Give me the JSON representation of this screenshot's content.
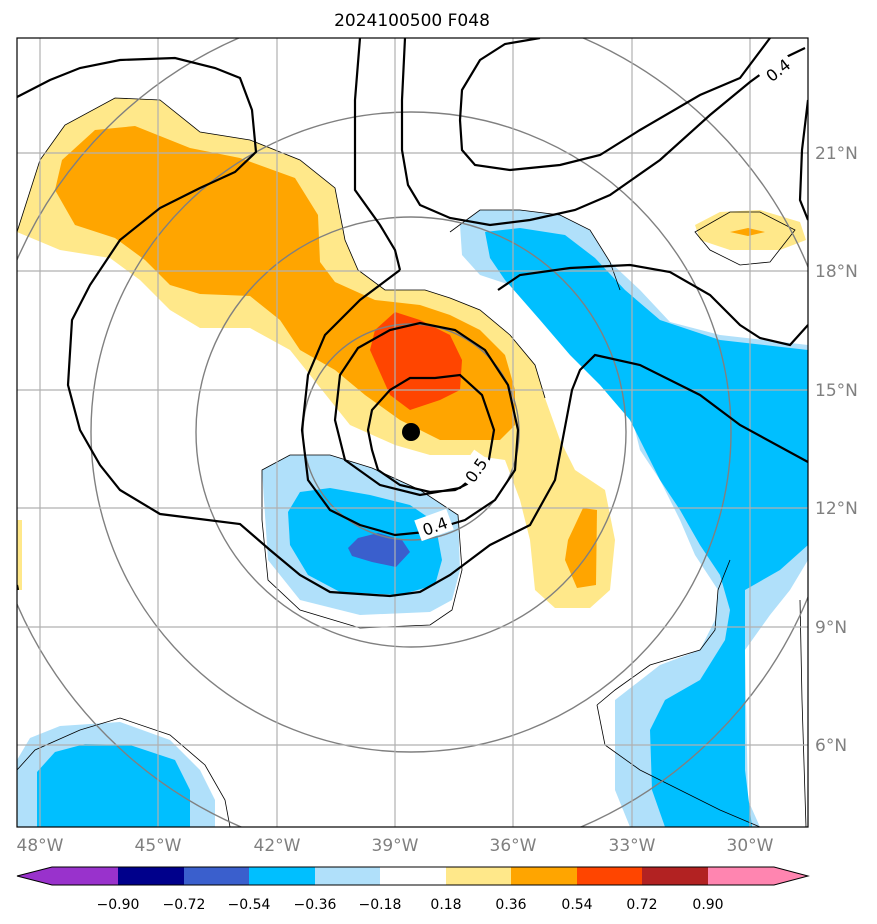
{
  "title": "2024100500 F048",
  "map": {
    "lon_labels": [
      "48°W",
      "45°W",
      "42°W",
      "39°W",
      "36°W",
      "33°W",
      "30°W"
    ],
    "lat_labels": [
      "21°N",
      "18°N",
      "15°N",
      "12°N",
      "9°N",
      "6°N"
    ],
    "grid": true,
    "storm_center_marker": "filled-circle",
    "contour_labels": [
      "0.4",
      "0.5",
      "0.4"
    ]
  },
  "colorbar": {
    "tick_labels": [
      "−0.90",
      "−0.72",
      "−0.54",
      "−0.36",
      "−0.18",
      "0.18",
      "0.36",
      "0.54",
      "0.72",
      "0.90"
    ],
    "colors": [
      "#9932cc",
      "#00008b",
      "#3a5fcd",
      "#00bfff",
      "#b0e0fa",
      "#ffffff",
      "#ffe88a",
      "#ffa500",
      "#ff4500",
      "#b22222",
      "#ff85b0"
    ],
    "extend": "both"
  }
}
